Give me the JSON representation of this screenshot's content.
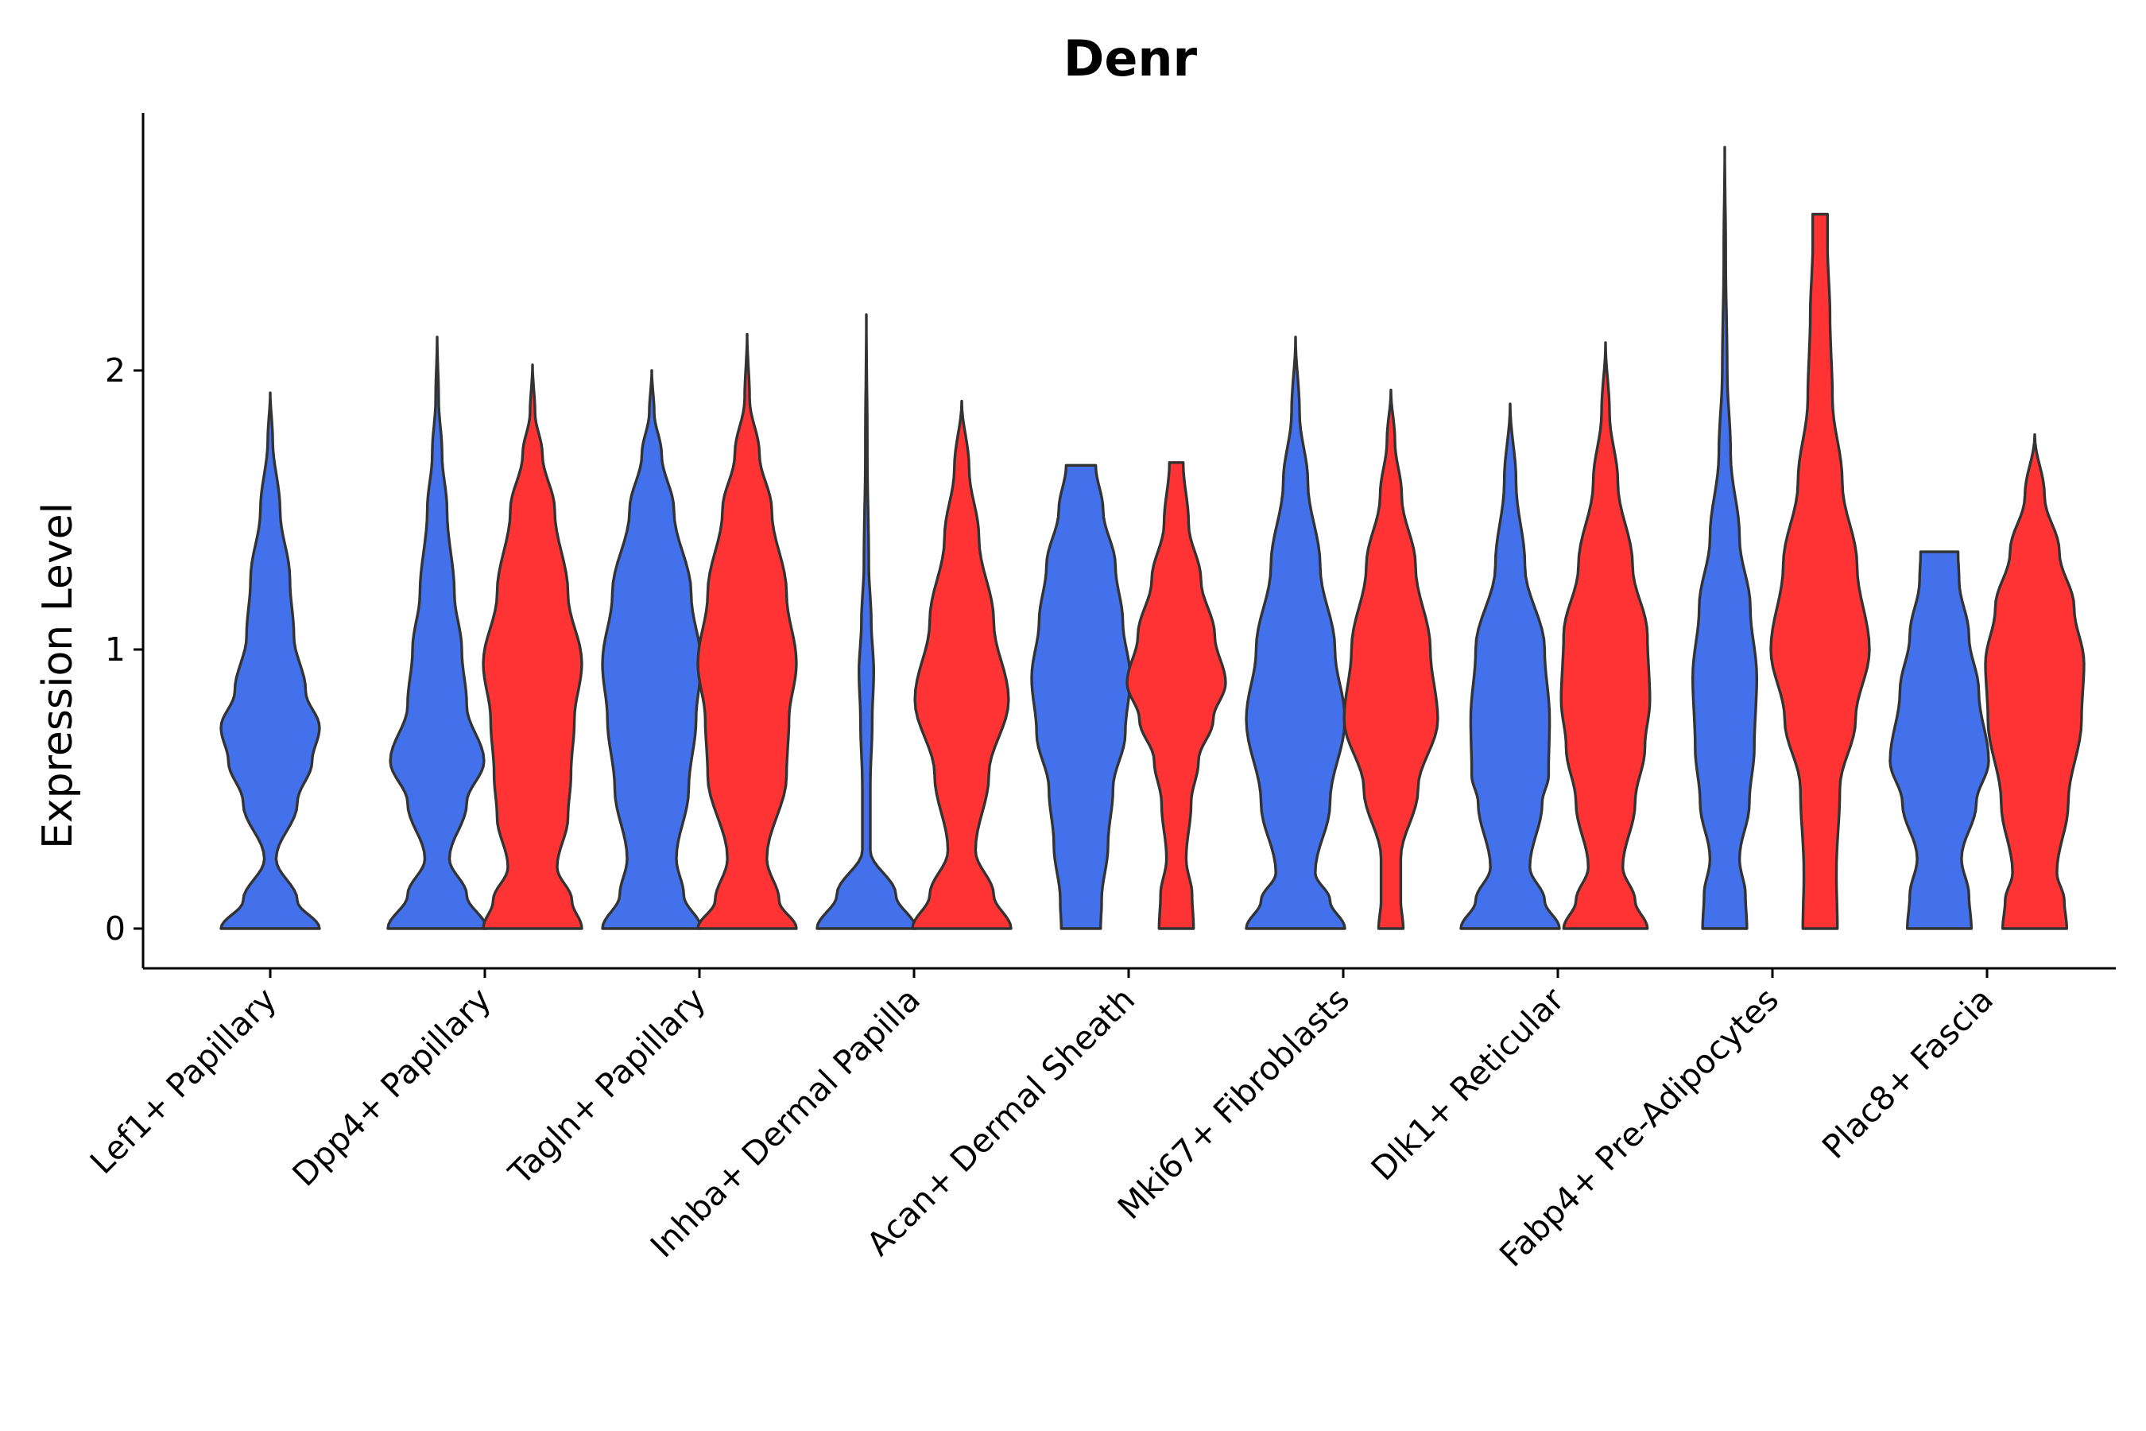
{
  "chart_data": {
    "type": "violin",
    "title": "Denr",
    "xlabel": "",
    "ylabel": "Expression Level",
    "ylim": [
      -0.14,
      2.95
    ],
    "yticks": [
      0,
      1,
      2
    ],
    "grid": false,
    "legend": "none",
    "colors": {
      "blue": "#4370EB",
      "red": "#FF3333"
    },
    "categories": [
      "Lef1+ Papillary",
      "Dpp4+ Papillary",
      "Tagln+ Papillary",
      "Inhba+ Dermal Papilla",
      "Acan+ Dermal Sheath",
      "Mki67+ Fibroblasts",
      "Dlk1+ Reticular",
      "Fabp4+ Pre-Adipocytes",
      "Plac8+ Fascia"
    ],
    "violins": [
      {
        "category": "Lef1+ Papillary",
        "group": "blue",
        "max": 1.92,
        "profile": [
          [
            0,
            1.0
          ],
          [
            0.1,
            0.55
          ],
          [
            0.25,
            0.12
          ],
          [
            0.45,
            0.55
          ],
          [
            0.6,
            0.85
          ],
          [
            0.72,
            1.0
          ],
          [
            0.85,
            0.72
          ],
          [
            1.05,
            0.48
          ],
          [
            1.25,
            0.4
          ],
          [
            1.5,
            0.2
          ],
          [
            1.75,
            0.05
          ],
          [
            1.92,
            0
          ]
        ]
      },
      {
        "category": "Dpp4+ Papillary",
        "group": "blue",
        "max": 2.12,
        "profile": [
          [
            0,
            1.0
          ],
          [
            0.12,
            0.6
          ],
          [
            0.25,
            0.25
          ],
          [
            0.45,
            0.6
          ],
          [
            0.6,
            0.95
          ],
          [
            0.8,
            0.6
          ],
          [
            1.0,
            0.5
          ],
          [
            1.2,
            0.35
          ],
          [
            1.5,
            0.2
          ],
          [
            1.7,
            0.1
          ],
          [
            1.9,
            0.03
          ],
          [
            2.12,
            0
          ]
        ]
      },
      {
        "category": "Dpp4+ Papillary",
        "group": "red",
        "max": 2.02,
        "profile": [
          [
            0,
            1.0
          ],
          [
            0.1,
            0.8
          ],
          [
            0.22,
            0.5
          ],
          [
            0.4,
            0.72
          ],
          [
            0.55,
            0.78
          ],
          [
            0.75,
            0.85
          ],
          [
            0.95,
            1.0
          ],
          [
            1.2,
            0.72
          ],
          [
            1.5,
            0.45
          ],
          [
            1.7,
            0.2
          ],
          [
            1.85,
            0.05
          ],
          [
            2.02,
            0
          ]
        ]
      },
      {
        "category": "Tagln+ Papillary",
        "group": "blue",
        "max": 2.0,
        "profile": [
          [
            0,
            1.0
          ],
          [
            0.12,
            0.65
          ],
          [
            0.25,
            0.5
          ],
          [
            0.5,
            0.75
          ],
          [
            0.75,
            0.9
          ],
          [
            0.95,
            1.0
          ],
          [
            1.2,
            0.8
          ],
          [
            1.5,
            0.45
          ],
          [
            1.7,
            0.2
          ],
          [
            1.85,
            0.05
          ],
          [
            2.0,
            0
          ]
        ]
      },
      {
        "category": "Tagln+ Papillary",
        "group": "red",
        "max": 2.13,
        "profile": [
          [
            0,
            1.0
          ],
          [
            0.1,
            0.65
          ],
          [
            0.25,
            0.4
          ],
          [
            0.55,
            0.8
          ],
          [
            0.75,
            0.85
          ],
          [
            0.95,
            1.0
          ],
          [
            1.2,
            0.8
          ],
          [
            1.5,
            0.5
          ],
          [
            1.7,
            0.25
          ],
          [
            1.9,
            0.05
          ],
          [
            2.13,
            0
          ]
        ]
      },
      {
        "category": "Inhba+ Dermal Papilla",
        "group": "blue",
        "max": 2.2,
        "profile": [
          [
            0,
            1.0
          ],
          [
            0.12,
            0.6
          ],
          [
            0.28,
            0.08
          ],
          [
            0.5,
            0.08
          ],
          [
            0.75,
            0.12
          ],
          [
            0.92,
            0.15
          ],
          [
            1.1,
            0.1
          ],
          [
            1.3,
            0.05
          ],
          [
            1.7,
            0.02
          ],
          [
            2.2,
            0
          ]
        ]
      },
      {
        "category": "Inhba+ Dermal Papilla",
        "group": "red",
        "max": 1.89,
        "profile": [
          [
            0,
            1.0
          ],
          [
            0.12,
            0.65
          ],
          [
            0.28,
            0.28
          ],
          [
            0.55,
            0.55
          ],
          [
            0.82,
            0.95
          ],
          [
            1.1,
            0.65
          ],
          [
            1.4,
            0.35
          ],
          [
            1.65,
            0.15
          ],
          [
            1.89,
            0
          ]
        ]
      },
      {
        "category": "Acan+ Dermal Sheath",
        "group": "blue",
        "max": 1.66,
        "profile": [
          [
            0,
            0.4
          ],
          [
            0.1,
            0.42
          ],
          [
            0.3,
            0.55
          ],
          [
            0.5,
            0.65
          ],
          [
            0.7,
            0.9
          ],
          [
            0.9,
            1.0
          ],
          [
            1.1,
            0.85
          ],
          [
            1.3,
            0.7
          ],
          [
            1.5,
            0.45
          ],
          [
            1.66,
            0.3
          ]
        ]
      },
      {
        "category": "Acan+ Dermal Sheath",
        "group": "red",
        "max": 1.67,
        "profile": [
          [
            0,
            0.35
          ],
          [
            0.12,
            0.32
          ],
          [
            0.25,
            0.2
          ],
          [
            0.45,
            0.3
          ],
          [
            0.6,
            0.45
          ],
          [
            0.75,
            0.75
          ],
          [
            0.88,
            1.0
          ],
          [
            1.05,
            0.78
          ],
          [
            1.25,
            0.5
          ],
          [
            1.45,
            0.25
          ],
          [
            1.67,
            0.14
          ]
        ]
      },
      {
        "category": "Mki67+ Fibroblasts",
        "group": "blue",
        "max": 2.12,
        "profile": [
          [
            0,
            1.0
          ],
          [
            0.1,
            0.7
          ],
          [
            0.2,
            0.4
          ],
          [
            0.45,
            0.7
          ],
          [
            0.75,
            1.0
          ],
          [
            1.0,
            0.8
          ],
          [
            1.3,
            0.5
          ],
          [
            1.6,
            0.25
          ],
          [
            1.85,
            0.08
          ],
          [
            2.12,
            0
          ]
        ]
      },
      {
        "category": "Mki67+ Fibroblasts",
        "group": "red",
        "max": 1.93,
        "profile": [
          [
            0,
            0.25
          ],
          [
            0.1,
            0.2
          ],
          [
            0.25,
            0.2
          ],
          [
            0.5,
            0.55
          ],
          [
            0.75,
            0.95
          ],
          [
            1.0,
            0.8
          ],
          [
            1.3,
            0.5
          ],
          [
            1.55,
            0.22
          ],
          [
            1.75,
            0.08
          ],
          [
            1.93,
            0
          ]
        ]
      },
      {
        "category": "Dlk1+ Reticular",
        "group": "blue",
        "max": 1.88,
        "profile": [
          [
            0,
            1.0
          ],
          [
            0.1,
            0.7
          ],
          [
            0.22,
            0.4
          ],
          [
            0.45,
            0.65
          ],
          [
            0.55,
            0.78
          ],
          [
            0.75,
            0.8
          ],
          [
            1.0,
            0.7
          ],
          [
            1.3,
            0.3
          ],
          [
            1.6,
            0.12
          ],
          [
            1.88,
            0
          ]
        ]
      },
      {
        "category": "Dlk1+ Reticular",
        "group": "red",
        "max": 2.1,
        "profile": [
          [
            0,
            0.85
          ],
          [
            0.1,
            0.6
          ],
          [
            0.22,
            0.35
          ],
          [
            0.45,
            0.6
          ],
          [
            0.65,
            0.8
          ],
          [
            0.82,
            0.9
          ],
          [
            1.05,
            0.85
          ],
          [
            1.3,
            0.55
          ],
          [
            1.6,
            0.25
          ],
          [
            1.85,
            0.08
          ],
          [
            2.1,
            0
          ]
        ]
      },
      {
        "category": "Fabp4+ Pre-Adipocytes",
        "group": "blue",
        "max": 2.8,
        "profile": [
          [
            0,
            0.45
          ],
          [
            0.12,
            0.42
          ],
          [
            0.25,
            0.3
          ],
          [
            0.45,
            0.5
          ],
          [
            0.65,
            0.6
          ],
          [
            0.9,
            0.65
          ],
          [
            1.15,
            0.52
          ],
          [
            1.4,
            0.3
          ],
          [
            1.7,
            0.12
          ],
          [
            2.0,
            0.05
          ],
          [
            2.4,
            0.02
          ],
          [
            2.8,
            0
          ]
        ]
      },
      {
        "category": "Fabp4+ Pre-Adipocytes",
        "group": "red",
        "max": 2.56,
        "profile": [
          [
            0,
            0.35
          ],
          [
            0.2,
            0.33
          ],
          [
            0.5,
            0.4
          ],
          [
            0.75,
            0.72
          ],
          [
            1.0,
            1.0
          ],
          [
            1.3,
            0.75
          ],
          [
            1.6,
            0.45
          ],
          [
            1.9,
            0.25
          ],
          [
            2.2,
            0.2
          ],
          [
            2.45,
            0.15
          ],
          [
            2.56,
            0.15
          ]
        ]
      },
      {
        "category": "Plac8+ Fascia",
        "group": "blue",
        "max": 1.35,
        "profile": [
          [
            0,
            0.65
          ],
          [
            0.12,
            0.6
          ],
          [
            0.25,
            0.45
          ],
          [
            0.45,
            0.75
          ],
          [
            0.6,
            1.0
          ],
          [
            0.85,
            0.8
          ],
          [
            1.05,
            0.6
          ],
          [
            1.25,
            0.4
          ],
          [
            1.35,
            0.38
          ]
        ]
      },
      {
        "category": "Plac8+ Fascia",
        "group": "red",
        "max": 1.77,
        "profile": [
          [
            0,
            0.65
          ],
          [
            0.1,
            0.6
          ],
          [
            0.2,
            0.45
          ],
          [
            0.45,
            0.68
          ],
          [
            0.75,
            0.95
          ],
          [
            0.95,
            1.0
          ],
          [
            1.15,
            0.8
          ],
          [
            1.35,
            0.5
          ],
          [
            1.55,
            0.2
          ],
          [
            1.77,
            0
          ]
        ]
      }
    ]
  }
}
